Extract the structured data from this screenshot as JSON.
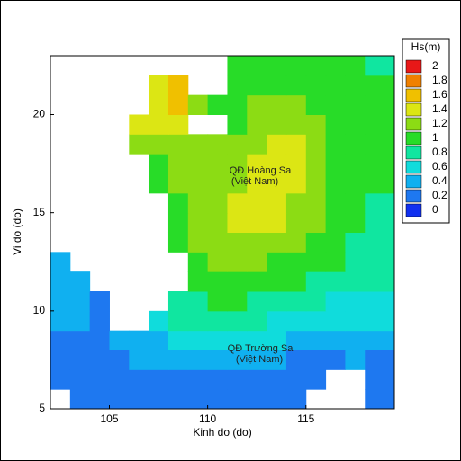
{
  "chart_data": {
    "type": "contour-map",
    "xlabel": "Kinh do (do)",
    "ylabel": "Vi do (do)",
    "annotations": [
      "QĐ Hoàng Sa",
      "(Việt Nam)",
      "QĐ Trường Sa",
      "(Việt Nam)"
    ],
    "xlim": [
      102,
      119.5
    ],
    "ylim": [
      5,
      23
    ],
    "xticks": [
      105,
      110,
      115
    ],
    "yticks": [
      5,
      10,
      15,
      20
    ],
    "x": [
      102.5,
      103.5,
      104.5,
      105.5,
      106.5,
      107.5,
      108.5,
      109.5,
      110.5,
      111.5,
      112.5,
      113.5,
      114.5,
      115.5,
      116.5,
      117.5,
      118.5
    ],
    "y": [
      5.5,
      6.5,
      7.5,
      8.5,
      9.5,
      10.5,
      11.5,
      12.5,
      13.5,
      14.5,
      15.5,
      16.5,
      17.5,
      18.5,
      19.5,
      20.5,
      21.5,
      22.5
    ],
    "values": [
      [
        null,
        0.2,
        0.2,
        0.2,
        0.2,
        0.2,
        0.2,
        0.2,
        0.2,
        0.2,
        0.2,
        0.2,
        0.2,
        null,
        null,
        null,
        0.2
      ],
      [
        0.2,
        0.2,
        0.2,
        0.2,
        0.2,
        0.3,
        0.3,
        0.3,
        0.3,
        0.3,
        0.3,
        0.3,
        0.2,
        0.2,
        null,
        null,
        0.2
      ],
      [
        0.3,
        0.3,
        0.3,
        0.3,
        0.4,
        0.4,
        0.4,
        0.4,
        0.4,
        0.4,
        0.4,
        0.4,
        0.3,
        0.3,
        0.3,
        0.4,
        0.3
      ],
      [
        0.3,
        0.3,
        0.3,
        0.4,
        0.5,
        0.5,
        0.6,
        0.6,
        0.6,
        0.6,
        0.6,
        0.6,
        0.5,
        0.5,
        0.4,
        0.4,
        0.4
      ],
      [
        0.4,
        0.4,
        0.3,
        null,
        null,
        0.7,
        0.8,
        0.8,
        0.8,
        0.8,
        0.8,
        0.7,
        0.7,
        0.7,
        0.6,
        0.6,
        0.6
      ],
      [
        0.4,
        0.4,
        0.3,
        null,
        null,
        null,
        0.9,
        0.9,
        1.0,
        1.0,
        0.9,
        0.9,
        0.8,
        0.8,
        0.7,
        0.7,
        0.7
      ],
      [
        0.4,
        0.4,
        null,
        null,
        null,
        null,
        null,
        1.0,
        1.1,
        1.1,
        1.1,
        1.0,
        1.0,
        0.9,
        0.9,
        0.8,
        0.8
      ],
      [
        0.4,
        null,
        null,
        null,
        null,
        null,
        null,
        1.1,
        1.2,
        1.2,
        1.2,
        1.1,
        1.1,
        1.0,
        1.0,
        0.9,
        0.8
      ],
      [
        null,
        null,
        null,
        null,
        null,
        null,
        1.0,
        1.2,
        1.3,
        1.3,
        1.3,
        1.3,
        1.2,
        1.1,
        1.0,
        0.9,
        0.9
      ],
      [
        null,
        null,
        null,
        null,
        null,
        null,
        1.1,
        1.2,
        1.3,
        1.4,
        1.5,
        1.4,
        1.3,
        1.2,
        1.1,
        1.0,
        0.9
      ],
      [
        null,
        null,
        null,
        null,
        null,
        null,
        1.1,
        1.2,
        1.3,
        1.4,
        1.5,
        1.5,
        1.3,
        1.2,
        1.1,
        1.0,
        0.9
      ],
      [
        null,
        null,
        null,
        null,
        null,
        1.1,
        1.2,
        1.2,
        1.3,
        1.3,
        1.5,
        1.5,
        1.4,
        1.2,
        1.1,
        1.0,
        1.0
      ],
      [
        null,
        null,
        null,
        null,
        null,
        1.1,
        1.2,
        1.2,
        1.2,
        1.3,
        1.4,
        1.5,
        1.4,
        1.2,
        1.1,
        1.0,
        1.0
      ],
      [
        null,
        null,
        null,
        null,
        1.2,
        1.2,
        1.2,
        1.2,
        1.2,
        1.3,
        1.3,
        1.5,
        1.4,
        1.2,
        1.1,
        1.0,
        1.0
      ],
      [
        null,
        null,
        null,
        null,
        1.4,
        1.5,
        1.4,
        null,
        null,
        1.1,
        1.2,
        1.3,
        1.2,
        1.2,
        1.1,
        1.0,
        1.0
      ],
      [
        null,
        null,
        null,
        null,
        null,
        1.5,
        1.6,
        1.2,
        1.1,
        1.1,
        1.2,
        1.2,
        1.2,
        1.1,
        1.0,
        1.0,
        1.0
      ],
      [
        null,
        null,
        null,
        null,
        null,
        1.5,
        1.6,
        null,
        null,
        1.0,
        1.1,
        1.1,
        1.1,
        1.1,
        1.0,
        1.0,
        1.0
      ],
      [
        null,
        null,
        null,
        null,
        null,
        null,
        null,
        null,
        null,
        1.0,
        1.0,
        1.0,
        1.1,
        1.0,
        1.0,
        1.0,
        0.9
      ]
    ],
    "colorbar": {
      "title": "Hs(m)",
      "ticks": [
        0,
        0.2,
        0.4,
        0.6,
        0.8,
        1,
        1.2,
        1.4,
        1.6,
        1.8,
        2
      ],
      "colors": [
        "#1030f0",
        "#1e78f0",
        "#10b0f0",
        "#10dcdc",
        "#10e6a0",
        "#28dc28",
        "#8cdc14",
        "#dce614",
        "#f0c000",
        "#f08000",
        "#e81818"
      ]
    }
  }
}
